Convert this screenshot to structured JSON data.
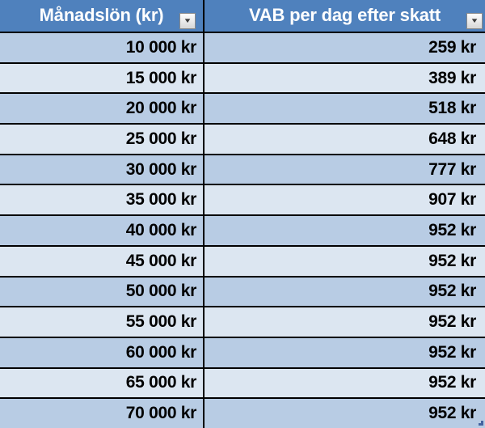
{
  "table": {
    "columns": [
      {
        "label": "Månadslön (kr)"
      },
      {
        "label": "VAB per dag efter skatt"
      }
    ],
    "filter_icon": "▼",
    "rows": [
      {
        "salary": "10 000 kr",
        "vab": "259 kr"
      },
      {
        "salary": "15 000 kr",
        "vab": "389 kr"
      },
      {
        "salary": "20 000 kr",
        "vab": "518 kr"
      },
      {
        "salary": "25 000 kr",
        "vab": "648 kr"
      },
      {
        "salary": "30 000 kr",
        "vab": "777 kr"
      },
      {
        "salary": "35 000 kr",
        "vab": "907 kr"
      },
      {
        "salary": "40 000 kr",
        "vab": "952 kr"
      },
      {
        "salary": "45 000 kr",
        "vab": "952 kr"
      },
      {
        "salary": "50 000 kr",
        "vab": "952 kr"
      },
      {
        "salary": "55 000 kr",
        "vab": "952 kr"
      },
      {
        "salary": "60 000 kr",
        "vab": "952 kr"
      },
      {
        "salary": "65 000 kr",
        "vab": "952 kr"
      },
      {
        "salary": "70 000 kr",
        "vab": "952 kr"
      }
    ]
  },
  "colors": {
    "header_bg": "#4f81bd",
    "header_text": "#ffffff",
    "band_dark": "#b8cce4",
    "band_light": "#dce6f1",
    "grid_border": "#000000",
    "handle_blue": "#44639f"
  }
}
